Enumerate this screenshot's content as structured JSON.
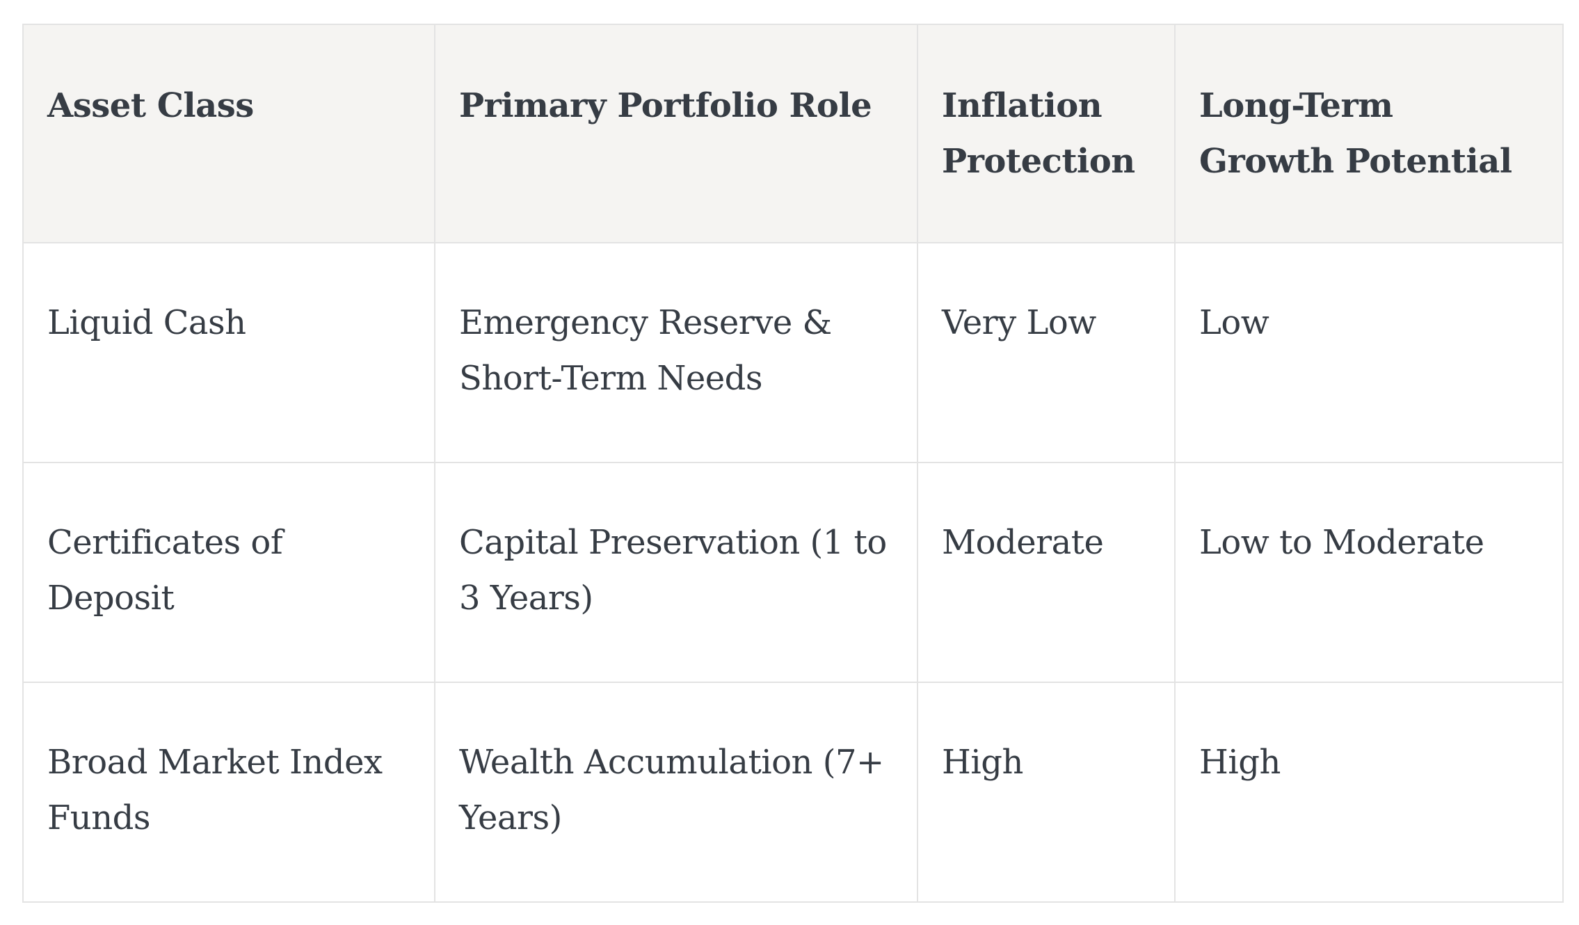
{
  "table": {
    "headers": [
      "Asset Class",
      "Primary Portfolio Role",
      "Inflation Protection",
      "Long-Term Growth Potential"
    ],
    "rows": [
      [
        "Liquid Cash",
        "Emergency Reserve & Short-Term Needs",
        "Very Low",
        "Low"
      ],
      [
        "Certificates of Deposit",
        "Capital Preservation (1 to 3 Years)",
        "Moderate",
        "Low to Moderate"
      ],
      [
        "Broad Market Index Funds",
        "Wealth Accumulation (7+ Years)",
        "High",
        "High"
      ]
    ]
  }
}
